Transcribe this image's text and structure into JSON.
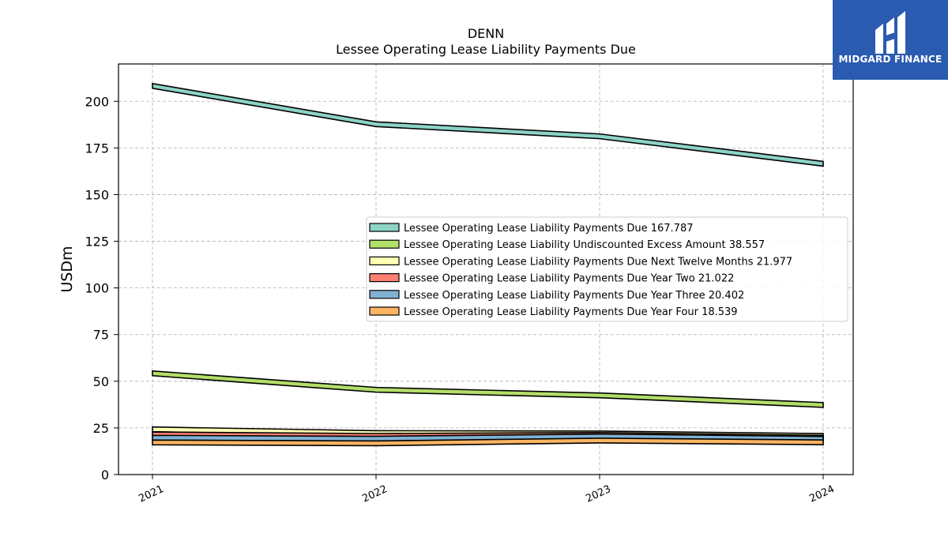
{
  "brand": {
    "name": "MIDGARD FINANCE",
    "color": "#2a5bb0",
    "icon": "midgard-logo-icon"
  },
  "chart_data": {
    "type": "area",
    "title": "DENN",
    "subtitle": "Lessee Operating Lease Liability Payments Due",
    "ylabel": "USDm",
    "xlabel": "",
    "ylim": [
      0,
      220
    ],
    "yticks": [
      0,
      25,
      50,
      75,
      100,
      125,
      150,
      175,
      200
    ],
    "categories": [
      "2021",
      "2022",
      "2023",
      "2024"
    ],
    "grid": true,
    "legend_position": "center-right",
    "series": [
      {
        "name": "Lessee Operating Lease Liability Payments Due",
        "latest": "167.787",
        "color": "#8dd3c7",
        "values": [
          209.5,
          189.0,
          182.5,
          167.787
        ]
      },
      {
        "name": "Lessee Operating Lease Liability Undiscounted Excess Amount",
        "latest": "38.557",
        "color": "#b3de69",
        "values": [
          55.5,
          46.7,
          43.7,
          38.557
        ]
      },
      {
        "name": "Lessee Operating Lease Liability Payments Due Next Twelve Months",
        "latest": "21.977",
        "color": "#ffffb3",
        "values": [
          25.5,
          23.5,
          23.3,
          21.977
        ]
      },
      {
        "name": "Lessee Operating Lease Liability Payments Due Year Two",
        "latest": "21.022",
        "color": "#fb8072",
        "values": [
          22.8,
          22.0,
          22.5,
          21.022
        ]
      },
      {
        "name": "Lessee Operating Lease Liability Payments Due Year Three",
        "latest": "20.402",
        "color": "#80b1d3",
        "values": [
          21.0,
          20.5,
          21.7,
          20.402
        ]
      },
      {
        "name": "Lessee Operating Lease Liability Payments Due Year Four",
        "latest": "18.539",
        "color": "#fdb462",
        "values": [
          18.5,
          18.0,
          19.5,
          18.539
        ]
      }
    ]
  }
}
